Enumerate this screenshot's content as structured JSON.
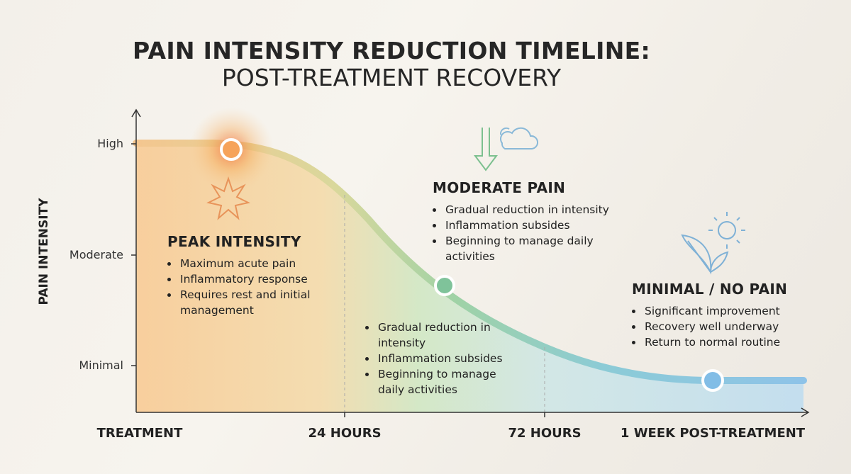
{
  "title": {
    "line1": "PAIN INTENSITY REDUCTION TIMELINE:",
    "line2": "POST-TREATMENT RECOVERY"
  },
  "y_axis": {
    "label": "PAIN INTENSITY",
    "levels": [
      "High",
      "Moderate",
      "Minimal"
    ]
  },
  "x_axis": {
    "labels": [
      "TREATMENT",
      "24 HOURS",
      "72 HOURS",
      "1 WEEK POST-TREATMENT"
    ]
  },
  "phases": [
    {
      "heading": "PEAK INTENSITY",
      "bullets": [
        "Maximum acute pain",
        "Inflammatory response",
        "Requires rest and initial management"
      ]
    },
    {
      "heading": "MODERATE PAIN",
      "bullets": [
        "Gradual reduction in intensity",
        "Inflammation subsides",
        "Beginning to manage daily activities"
      ]
    },
    {
      "heading": "MINIMAL / NO PAIN",
      "bullets": [
        "Significant improvement",
        "Recovery well underway",
        "Return to normal routine"
      ]
    }
  ],
  "mid_notes": {
    "bullets": [
      "Gradual reduction in intensity",
      "Inflammation subsides",
      "Beginning to manage daily activities"
    ]
  }
}
